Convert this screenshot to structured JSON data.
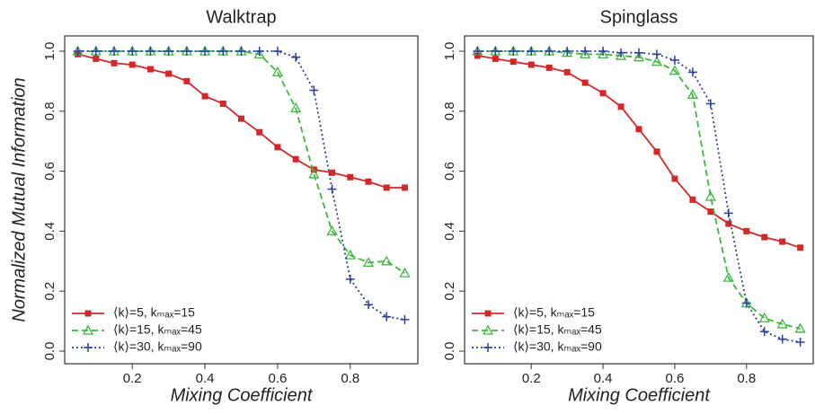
{
  "chart_data": [
    {
      "type": "line",
      "title": "Walktrap",
      "xlabel": "Mixing Coefficient",
      "ylabel": "Normalized Mutual Information",
      "x": [
        0.05,
        0.1,
        0.15,
        0.2,
        0.25,
        0.3,
        0.35,
        0.4,
        0.45,
        0.5,
        0.55,
        0.6,
        0.65,
        0.7,
        0.75,
        0.8,
        0.85,
        0.9,
        0.95
      ],
      "series": [
        {
          "name": "⟨k⟩=5, kₘₐₓ=15",
          "color": "#d62728",
          "dash": "solid",
          "marker": "square",
          "values": [
            0.99,
            0.975,
            0.96,
            0.955,
            0.94,
            0.925,
            0.9,
            0.85,
            0.825,
            0.775,
            0.73,
            0.68,
            0.64,
            0.605,
            0.595,
            0.58,
            0.565,
            0.545,
            0.545
          ]
        },
        {
          "name": "⟨k⟩=15, kₘₐₓ=45",
          "color": "#3cb83c",
          "dash": "dashed",
          "marker": "triangle",
          "values": [
            1,
            1,
            1,
            1,
            1,
            1,
            1,
            1,
            1,
            1,
            0.99,
            0.93,
            0.81,
            0.59,
            0.4,
            0.32,
            0.295,
            0.3,
            0.26
          ]
        },
        {
          "name": "⟨k⟩=30, kₘₐₓ=90",
          "color": "#2b3f9e",
          "dash": "dotted",
          "marker": "plus",
          "values": [
            1,
            1,
            1,
            1,
            1,
            1,
            1,
            1,
            1,
            1,
            1,
            1,
            0.98,
            0.87,
            0.54,
            0.24,
            0.155,
            0.115,
            0.105
          ]
        }
      ],
      "xlim": [
        0.014,
        0.986
      ],
      "ylim": [
        -0.042,
        1.051
      ],
      "xticks": [
        0.2,
        0.4,
        0.6,
        0.8
      ],
      "yticks": [
        {
          "value": 0,
          "label": "0.0"
        },
        0.2,
        0.4,
        0.6,
        0.8,
        {
          "value": 1,
          "label": "1.0"
        }
      ],
      "legend": "lower left"
    },
    {
      "type": "line",
      "title": "Spinglass",
      "xlabel": "Mixing Coefficient",
      "x": [
        0.05,
        0.1,
        0.15,
        0.2,
        0.25,
        0.3,
        0.35,
        0.4,
        0.45,
        0.5,
        0.55,
        0.6,
        0.65,
        0.7,
        0.75,
        0.8,
        0.85,
        0.9,
        0.95
      ],
      "series": [
        {
          "name": "⟨k⟩=5, kₘₐₓ=15",
          "color": "#d62728",
          "dash": "solid",
          "marker": "square",
          "values": [
            0.985,
            0.975,
            0.965,
            0.955,
            0.945,
            0.93,
            0.895,
            0.86,
            0.815,
            0.74,
            0.665,
            0.575,
            0.505,
            0.465,
            0.425,
            0.4,
            0.38,
            0.365,
            0.345
          ]
        },
        {
          "name": "⟨k⟩=15, kₘₐₓ=45",
          "color": "#3cb83c",
          "dash": "dashed",
          "marker": "triangle",
          "values": [
            1,
            1,
            1,
            1,
            1,
            0.995,
            0.99,
            0.99,
            0.985,
            0.98,
            0.965,
            0.935,
            0.855,
            0.515,
            0.245,
            0.16,
            0.11,
            0.09,
            0.075
          ]
        },
        {
          "name": "⟨k⟩=30, kₘₐₓ=90",
          "color": "#2b3f9e",
          "dash": "dotted",
          "marker": "plus",
          "values": [
            1,
            1,
            1,
            1,
            1,
            1,
            1,
            1,
            0.995,
            0.995,
            0.99,
            0.97,
            0.93,
            0.825,
            0.46,
            0.16,
            0.065,
            0.04,
            0.03
          ]
        }
      ],
      "xlim": [
        0.014,
        0.986
      ],
      "ylim": [
        -0.042,
        1.051
      ],
      "xticks": [
        0.2,
        0.4,
        0.6,
        0.8
      ],
      "yticks": [
        {
          "value": 0,
          "label": "0.0"
        },
        0.2,
        0.4,
        0.6,
        0.8,
        {
          "value": 1,
          "label": "1.0"
        }
      ],
      "legend": "lower left"
    }
  ]
}
